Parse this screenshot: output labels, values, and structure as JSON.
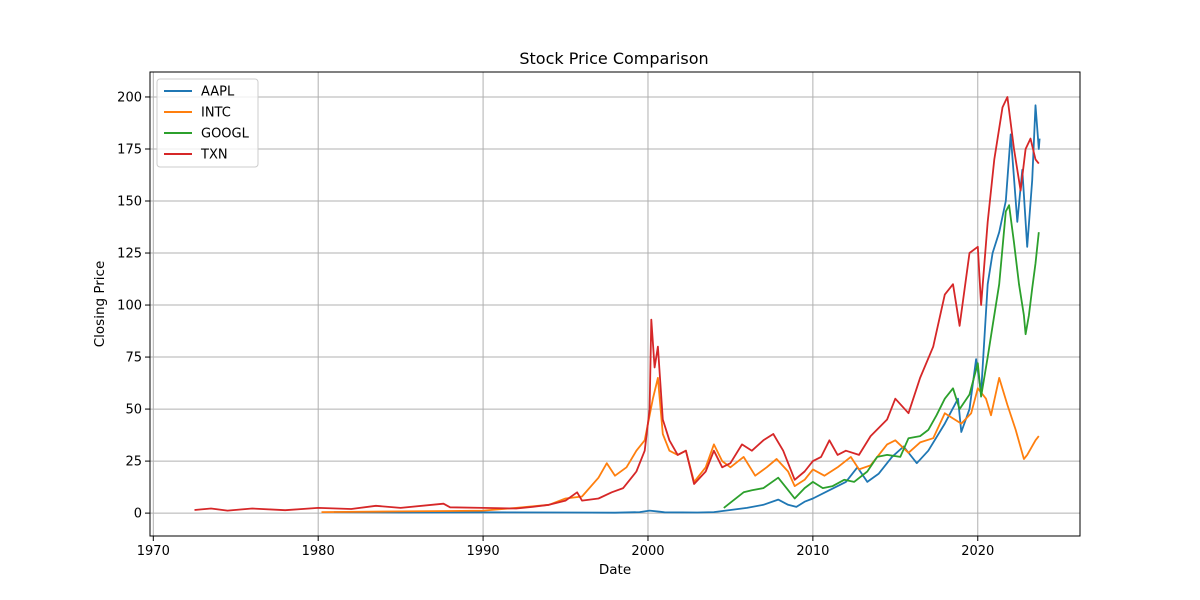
{
  "chart_data": {
    "type": "line",
    "title": "Stock Price Comparison",
    "xlabel": "Date",
    "ylabel": "Closing Price",
    "xlim": [
      1969.8,
      2026.2
    ],
    "ylim": [
      -11,
      212
    ],
    "x_ticks": [
      1970,
      1980,
      1990,
      2000,
      2010,
      2020
    ],
    "y_ticks": [
      0,
      25,
      50,
      75,
      100,
      125,
      150,
      175,
      200
    ],
    "grid": true,
    "legend_position": "top-left",
    "series": [
      {
        "name": "AAPL",
        "color": "#1f77b4",
        "points": [
          [
            1980.95,
            0.5
          ],
          [
            1985,
            0.3
          ],
          [
            1990,
            0.4
          ],
          [
            1995,
            0.3
          ],
          [
            1998,
            0.2
          ],
          [
            1999.5,
            0.5
          ],
          [
            2000.1,
            1.2
          ],
          [
            2000.7,
            0.7
          ],
          [
            2001,
            0.4
          ],
          [
            2003,
            0.3
          ],
          [
            2004,
            0.5
          ],
          [
            2005,
            1.5
          ],
          [
            2006,
            2.5
          ],
          [
            2007,
            4
          ],
          [
            2007.9,
            6.5
          ],
          [
            2008.5,
            4
          ],
          [
            2009,
            3
          ],
          [
            2009.5,
            5.5
          ],
          [
            2010,
            7
          ],
          [
            2011,
            11
          ],
          [
            2012,
            15
          ],
          [
            2012.7,
            22
          ],
          [
            2013.3,
            15
          ],
          [
            2014,
            19
          ],
          [
            2014.8,
            27
          ],
          [
            2015.5,
            32
          ],
          [
            2016.3,
            24
          ],
          [
            2017,
            30
          ],
          [
            2018,
            43
          ],
          [
            2018.8,
            55
          ],
          [
            2019,
            39
          ],
          [
            2019.5,
            50
          ],
          [
            2019.9,
            74
          ],
          [
            2020.2,
            58
          ],
          [
            2020.6,
            110
          ],
          [
            2020.9,
            125
          ],
          [
            2021.3,
            135
          ],
          [
            2021.7,
            150
          ],
          [
            2022,
            182
          ],
          [
            2022.4,
            140
          ],
          [
            2022.7,
            165
          ],
          [
            2023,
            128
          ],
          [
            2023.3,
            160
          ],
          [
            2023.5,
            196
          ],
          [
            2023.7,
            175
          ],
          [
            2023.75,
            180
          ]
        ]
      },
      {
        "name": "INTC",
        "color": "#ff7f0e",
        "points": [
          [
            1980.2,
            0.5
          ],
          [
            1985,
            0.8
          ],
          [
            1988,
            1
          ],
          [
            1990,
            1.2
          ],
          [
            1992,
            2.5
          ],
          [
            1994,
            4
          ],
          [
            1995,
            7
          ],
          [
            1996,
            8
          ],
          [
            1997,
            17
          ],
          [
            1997.5,
            24
          ],
          [
            1998,
            18
          ],
          [
            1998.7,
            22
          ],
          [
            1999.3,
            30
          ],
          [
            1999.8,
            35
          ],
          [
            2000.3,
            55
          ],
          [
            2000.6,
            65
          ],
          [
            2000.9,
            38
          ],
          [
            2001.3,
            30
          ],
          [
            2001.8,
            28
          ],
          [
            2002.3,
            30
          ],
          [
            2002.8,
            15
          ],
          [
            2003.5,
            22
          ],
          [
            2004,
            33
          ],
          [
            2004.5,
            25
          ],
          [
            2005,
            22
          ],
          [
            2005.8,
            27
          ],
          [
            2006.5,
            18
          ],
          [
            2007.2,
            22
          ],
          [
            2007.8,
            26
          ],
          [
            2008.5,
            20
          ],
          [
            2008.9,
            13
          ],
          [
            2009.5,
            16
          ],
          [
            2010,
            21
          ],
          [
            2010.7,
            18
          ],
          [
            2011.5,
            22
          ],
          [
            2012.3,
            27
          ],
          [
            2012.8,
            21
          ],
          [
            2013.5,
            23
          ],
          [
            2014.5,
            33
          ],
          [
            2015,
            35
          ],
          [
            2015.8,
            29
          ],
          [
            2016.5,
            34
          ],
          [
            2017.3,
            36
          ],
          [
            2018,
            48
          ],
          [
            2018.6,
            45
          ],
          [
            2019,
            43
          ],
          [
            2019.6,
            48
          ],
          [
            2020,
            60
          ],
          [
            2020.5,
            55
          ],
          [
            2020.8,
            47
          ],
          [
            2021.3,
            65
          ],
          [
            2021.8,
            52
          ],
          [
            2022.3,
            40
          ],
          [
            2022.8,
            26
          ],
          [
            2023,
            28
          ],
          [
            2023.5,
            35
          ],
          [
            2023.7,
            37
          ]
        ]
      },
      {
        "name": "GOOGL",
        "color": "#2ca02c",
        "points": [
          [
            2004.6,
            2.5
          ],
          [
            2005,
            5
          ],
          [
            2005.8,
            10
          ],
          [
            2006.3,
            11
          ],
          [
            2007,
            12
          ],
          [
            2007.9,
            17
          ],
          [
            2008.4,
            12
          ],
          [
            2008.9,
            7
          ],
          [
            2009.5,
            12
          ],
          [
            2010,
            15
          ],
          [
            2010.6,
            12
          ],
          [
            2011.2,
            13
          ],
          [
            2011.9,
            16
          ],
          [
            2012.5,
            15
          ],
          [
            2013.3,
            20
          ],
          [
            2013.9,
            27
          ],
          [
            2014.5,
            28
          ],
          [
            2015.3,
            27
          ],
          [
            2015.8,
            36
          ],
          [
            2016.5,
            37
          ],
          [
            2017,
            40
          ],
          [
            2017.5,
            47
          ],
          [
            2018,
            55
          ],
          [
            2018.5,
            60
          ],
          [
            2018.9,
            50
          ],
          [
            2019.5,
            57
          ],
          [
            2020,
            72
          ],
          [
            2020.2,
            56
          ],
          [
            2020.6,
            75
          ],
          [
            2020.9,
            90
          ],
          [
            2021.3,
            110
          ],
          [
            2021.7,
            145
          ],
          [
            2021.9,
            148
          ],
          [
            2022.2,
            130
          ],
          [
            2022.5,
            110
          ],
          [
            2022.8,
            95
          ],
          [
            2022.9,
            86
          ],
          [
            2023.1,
            95
          ],
          [
            2023.3,
            108
          ],
          [
            2023.5,
            120
          ],
          [
            2023.7,
            135
          ]
        ]
      },
      {
        "name": "TXN",
        "color": "#d62728",
        "points": [
          [
            1972.5,
            1.5
          ],
          [
            1973.5,
            2.2
          ],
          [
            1974.5,
            1.2
          ],
          [
            1976,
            2.2
          ],
          [
            1978,
            1.4
          ],
          [
            1980,
            2.5
          ],
          [
            1982,
            2
          ],
          [
            1983.5,
            3.5
          ],
          [
            1985,
            2.5
          ],
          [
            1987.6,
            4.5
          ],
          [
            1988,
            2.8
          ],
          [
            1990,
            2.5
          ],
          [
            1992,
            2.2
          ],
          [
            1993,
            3
          ],
          [
            1994,
            4
          ],
          [
            1995,
            6
          ],
          [
            1995.7,
            10
          ],
          [
            1996,
            6
          ],
          [
            1997,
            7
          ],
          [
            1997.8,
            10
          ],
          [
            1998.5,
            12
          ],
          [
            1999.3,
            20
          ],
          [
            1999.8,
            30
          ],
          [
            2000.1,
            50
          ],
          [
            2000.2,
            93
          ],
          [
            2000.4,
            70
          ],
          [
            2000.6,
            80
          ],
          [
            2000.9,
            45
          ],
          [
            2001.3,
            35
          ],
          [
            2001.8,
            28
          ],
          [
            2002.3,
            30
          ],
          [
            2002.8,
            14
          ],
          [
            2003.5,
            20
          ],
          [
            2004,
            30
          ],
          [
            2004.5,
            22
          ],
          [
            2005,
            24
          ],
          [
            2005.7,
            33
          ],
          [
            2006.3,
            30
          ],
          [
            2007,
            35
          ],
          [
            2007.6,
            38
          ],
          [
            2008.2,
            30
          ],
          [
            2008.9,
            16
          ],
          [
            2009.5,
            20
          ],
          [
            2010,
            25
          ],
          [
            2010.5,
            27
          ],
          [
            2011,
            35
          ],
          [
            2011.5,
            28
          ],
          [
            2012,
            30
          ],
          [
            2012.8,
            28
          ],
          [
            2013.5,
            37
          ],
          [
            2014.5,
            45
          ],
          [
            2015,
            55
          ],
          [
            2015.8,
            48
          ],
          [
            2016.5,
            65
          ],
          [
            2017.3,
            80
          ],
          [
            2018,
            105
          ],
          [
            2018.5,
            110
          ],
          [
            2018.9,
            90
          ],
          [
            2019.5,
            125
          ],
          [
            2020,
            128
          ],
          [
            2020.2,
            100
          ],
          [
            2020.6,
            140
          ],
          [
            2021,
            170
          ],
          [
            2021.5,
            195
          ],
          [
            2021.8,
            200
          ],
          [
            2022.2,
            175
          ],
          [
            2022.6,
            155
          ],
          [
            2022.9,
            175
          ],
          [
            2023.2,
            180
          ],
          [
            2023.5,
            170
          ],
          [
            2023.7,
            168
          ]
        ]
      }
    ]
  }
}
